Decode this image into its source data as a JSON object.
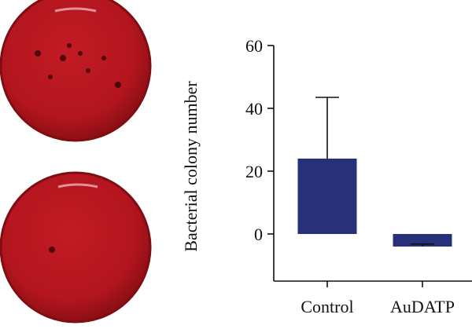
{
  "plates": {
    "top": {
      "colonies": [
        [
          48,
          68
        ],
        [
          102,
          68
        ],
        [
          64,
          98
        ],
        [
          150,
          108
        ],
        [
          88,
          58
        ],
        [
          112,
          90
        ],
        [
          80,
          74
        ],
        [
          132,
          74
        ]
      ]
    },
    "bottom": {
      "colonies": [
        [
          66,
          318
        ]
      ]
    },
    "agar_color": "#b3151e",
    "rim_color": "#7f0d12",
    "colony_color": "#3a0709"
  },
  "chart_data": {
    "type": "bar",
    "categories": [
      "Control",
      "AuDATP"
    ],
    "values": [
      24,
      -4
    ],
    "errors": [
      19.5,
      0.8
    ],
    "title": "",
    "xlabel": "",
    "ylabel": "Bacterial colony number",
    "ylim": [
      -15,
      60
    ],
    "yticks": [
      0,
      20,
      40,
      60
    ],
    "bar_color": "#29307a",
    "grid": false
  }
}
